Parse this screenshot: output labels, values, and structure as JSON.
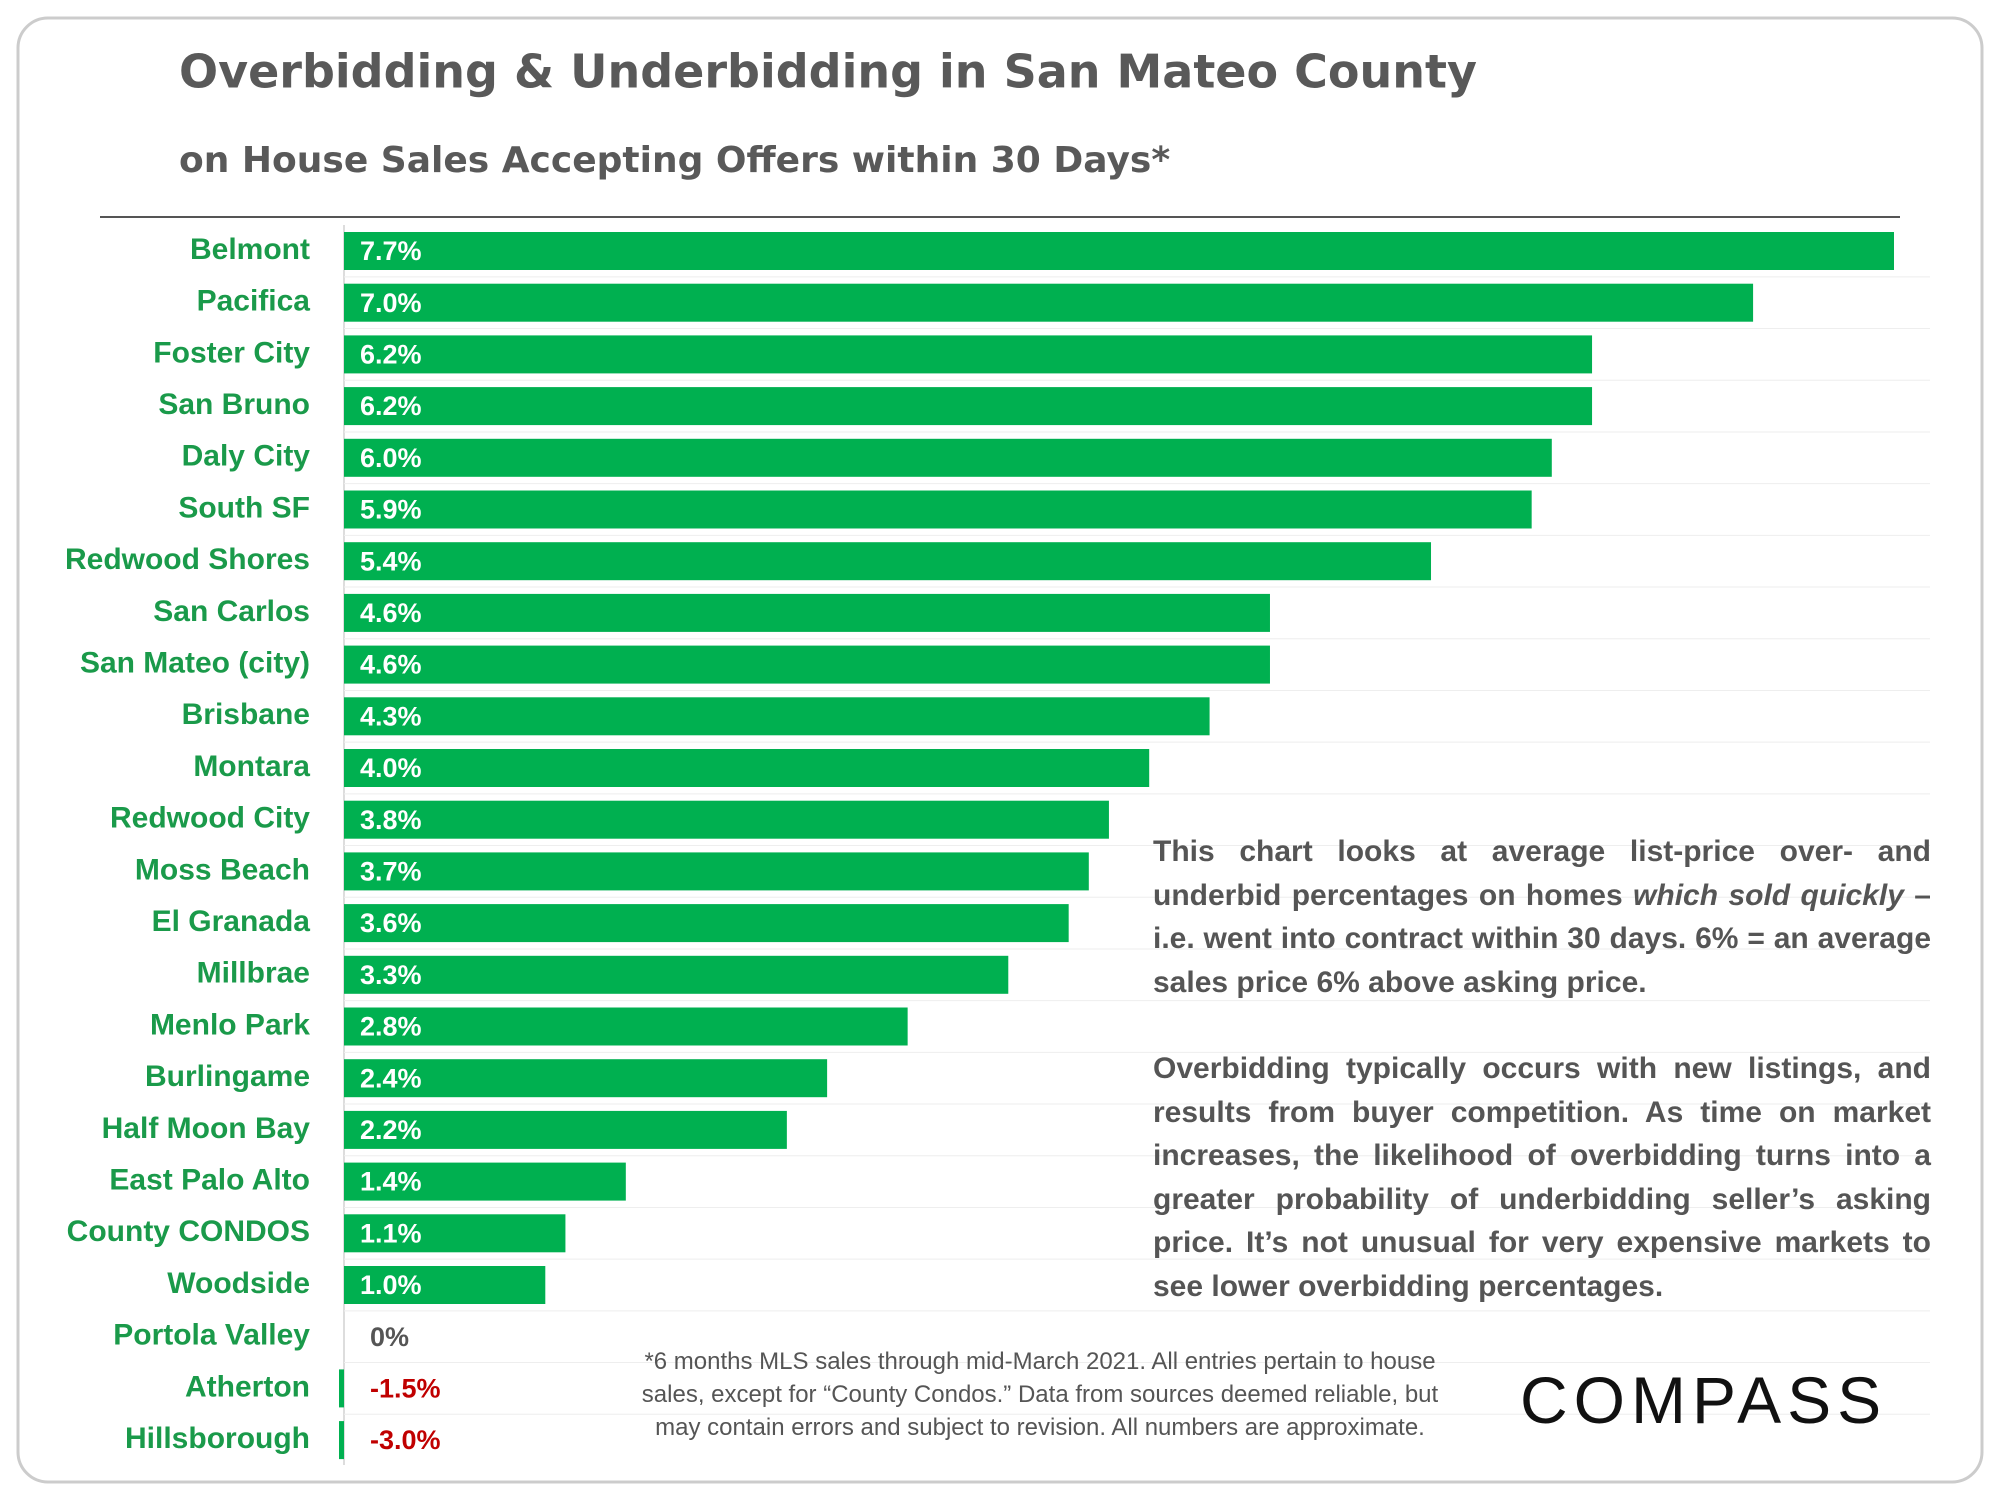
{
  "chart_data": {
    "type": "barh",
    "title": "Overbidding & Underbidding in San Mateo County",
    "subtitle": "on House Sales Accepting Offers within 30 Days*",
    "categories": [
      "Belmont",
      "Pacifica",
      "Foster City",
      "San Bruno",
      "Daly City",
      "South SF",
      "Redwood Shores",
      "San Carlos",
      "San Mateo (city)",
      "Brisbane",
      "Montara",
      "Redwood City",
      "Moss Beach",
      "El Granada",
      "Millbrae",
      "Menlo Park",
      "Burlingame",
      "Half Moon Bay",
      "East Palo Alto",
      "County CONDOS",
      "Woodside",
      "Portola Valley",
      "Atherton",
      "Hillsborough"
    ],
    "values": [
      7.7,
      7.0,
      6.2,
      6.2,
      6.0,
      5.9,
      5.4,
      4.6,
      4.6,
      4.3,
      4.0,
      3.8,
      3.7,
      3.6,
      3.3,
      2.8,
      2.4,
      2.2,
      1.4,
      1.1,
      1.0,
      0,
      -1.5,
      -3.0
    ],
    "value_labels": [
      "7.7%",
      "7.0%",
      "6.2%",
      "6.2%",
      "6.0%",
      "5.9%",
      "5.4%",
      "4.6%",
      "4.6%",
      "4.3%",
      "4.0%",
      "3.8%",
      "3.7%",
      "3.6%",
      "3.3%",
      "2.8%",
      "2.4%",
      "2.2%",
      "1.4%",
      "1.1%",
      "1.0%",
      "0%",
      "-1.5%",
      "-3.0%"
    ],
    "color": "#00b050",
    "negative_label_color": "#c00000",
    "xlim": [
      0,
      7.7
    ],
    "annotation_1": [
      "This chart looks at average list-price over- and underbid percentages on homes ",
      "which sold quickly",
      " – i.e. went into contract within 30 days. 6% = an average sales price 6% above asking price."
    ],
    "annotation_2": "Overbidding typically occurs with new listings, and results from buyer competition. As time on market increases, the likelihood of overbidding turns into a greater probability of underbidding seller’s asking price. It’s not unusual for very expensive markets to see lower overbidding percentages.",
    "footnote": [
      "*6 months MLS sales through mid-March 2021. All entries pertain to house",
      "sales, except for “County Condos.” Data from sources deemed reliable, but",
      "may contain errors and subject to revision. All numbers are approximate."
    ],
    "logo": "COMPASS"
  }
}
